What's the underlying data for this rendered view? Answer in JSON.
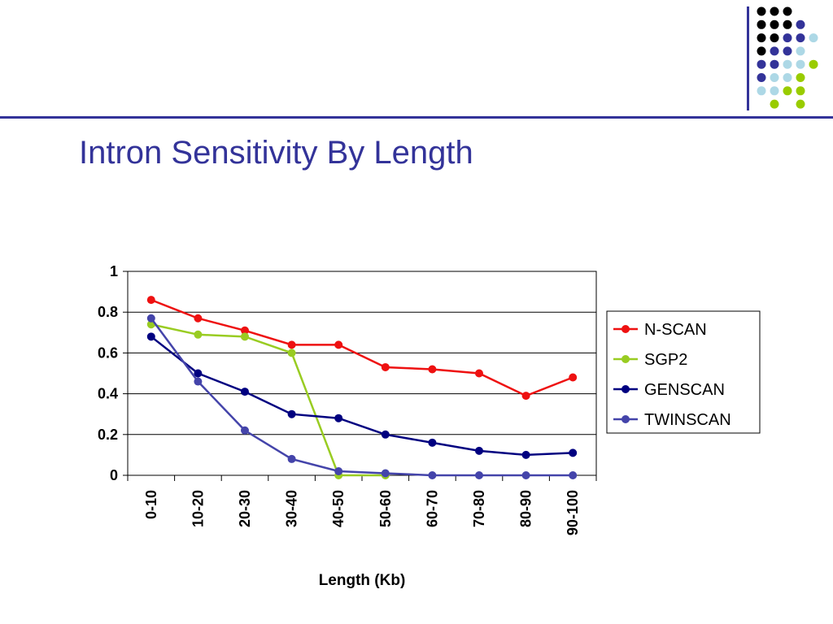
{
  "slide": {
    "title": "Intron Sensitivity By Length",
    "accent_color": "#333399",
    "dot_grid": [
      [
        "#000000",
        "#000000",
        "#000000",
        null,
        null
      ],
      [
        "#000000",
        "#000000",
        "#000000",
        "#333399",
        null
      ],
      [
        "#000000",
        "#000000",
        "#333399",
        "#333399",
        "#add8e6"
      ],
      [
        "#000000",
        "#333399",
        "#333399",
        "#add8e6",
        null
      ],
      [
        "#333399",
        "#333399",
        "#add8e6",
        "#add8e6",
        "#99cc00"
      ],
      [
        "#333399",
        "#add8e6",
        "#add8e6",
        "#99cc00",
        null
      ],
      [
        "#add8e6",
        "#add8e6",
        "#99cc00",
        "#99cc00",
        null
      ],
      [
        null,
        "#99cc00",
        null,
        "#99cc00",
        null
      ]
    ]
  },
  "chart_data": {
    "type": "line",
    "title": "",
    "xlabel": "Length (Kb)",
    "ylabel": "",
    "categories": [
      "0-10",
      "10-20",
      "20-30",
      "30-40",
      "40-50",
      "50-60",
      "60-70",
      "70-80",
      "80-90",
      "90-100"
    ],
    "ylim": [
      0,
      1
    ],
    "yticks": [
      0,
      0.2,
      0.4,
      0.6,
      0.8,
      1
    ],
    "ytick_labels": [
      "0",
      "0.2",
      "0.4",
      "0.6",
      "0.8",
      "1"
    ],
    "grid": true,
    "legend_position": "right",
    "series": [
      {
        "name": "N-SCAN",
        "color": "#ee1111",
        "values": [
          0.86,
          0.77,
          0.71,
          0.64,
          0.64,
          0.53,
          0.52,
          0.5,
          0.39,
          0.48
        ]
      },
      {
        "name": "SGP2",
        "color": "#99cc22",
        "values": [
          0.74,
          0.69,
          0.68,
          0.6,
          0.0,
          0.0,
          null,
          null,
          null,
          null
        ]
      },
      {
        "name": "GENSCAN",
        "color": "#000080",
        "values": [
          0.68,
          0.5,
          0.41,
          0.3,
          0.28,
          0.2,
          0.16,
          0.12,
          0.1,
          0.11
        ]
      },
      {
        "name": "TWINSCAN",
        "color": "#4444aa",
        "values": [
          0.77,
          0.46,
          0.22,
          0.08,
          0.02,
          0.01,
          0.0,
          0.0,
          0.0,
          0.0
        ]
      }
    ]
  }
}
